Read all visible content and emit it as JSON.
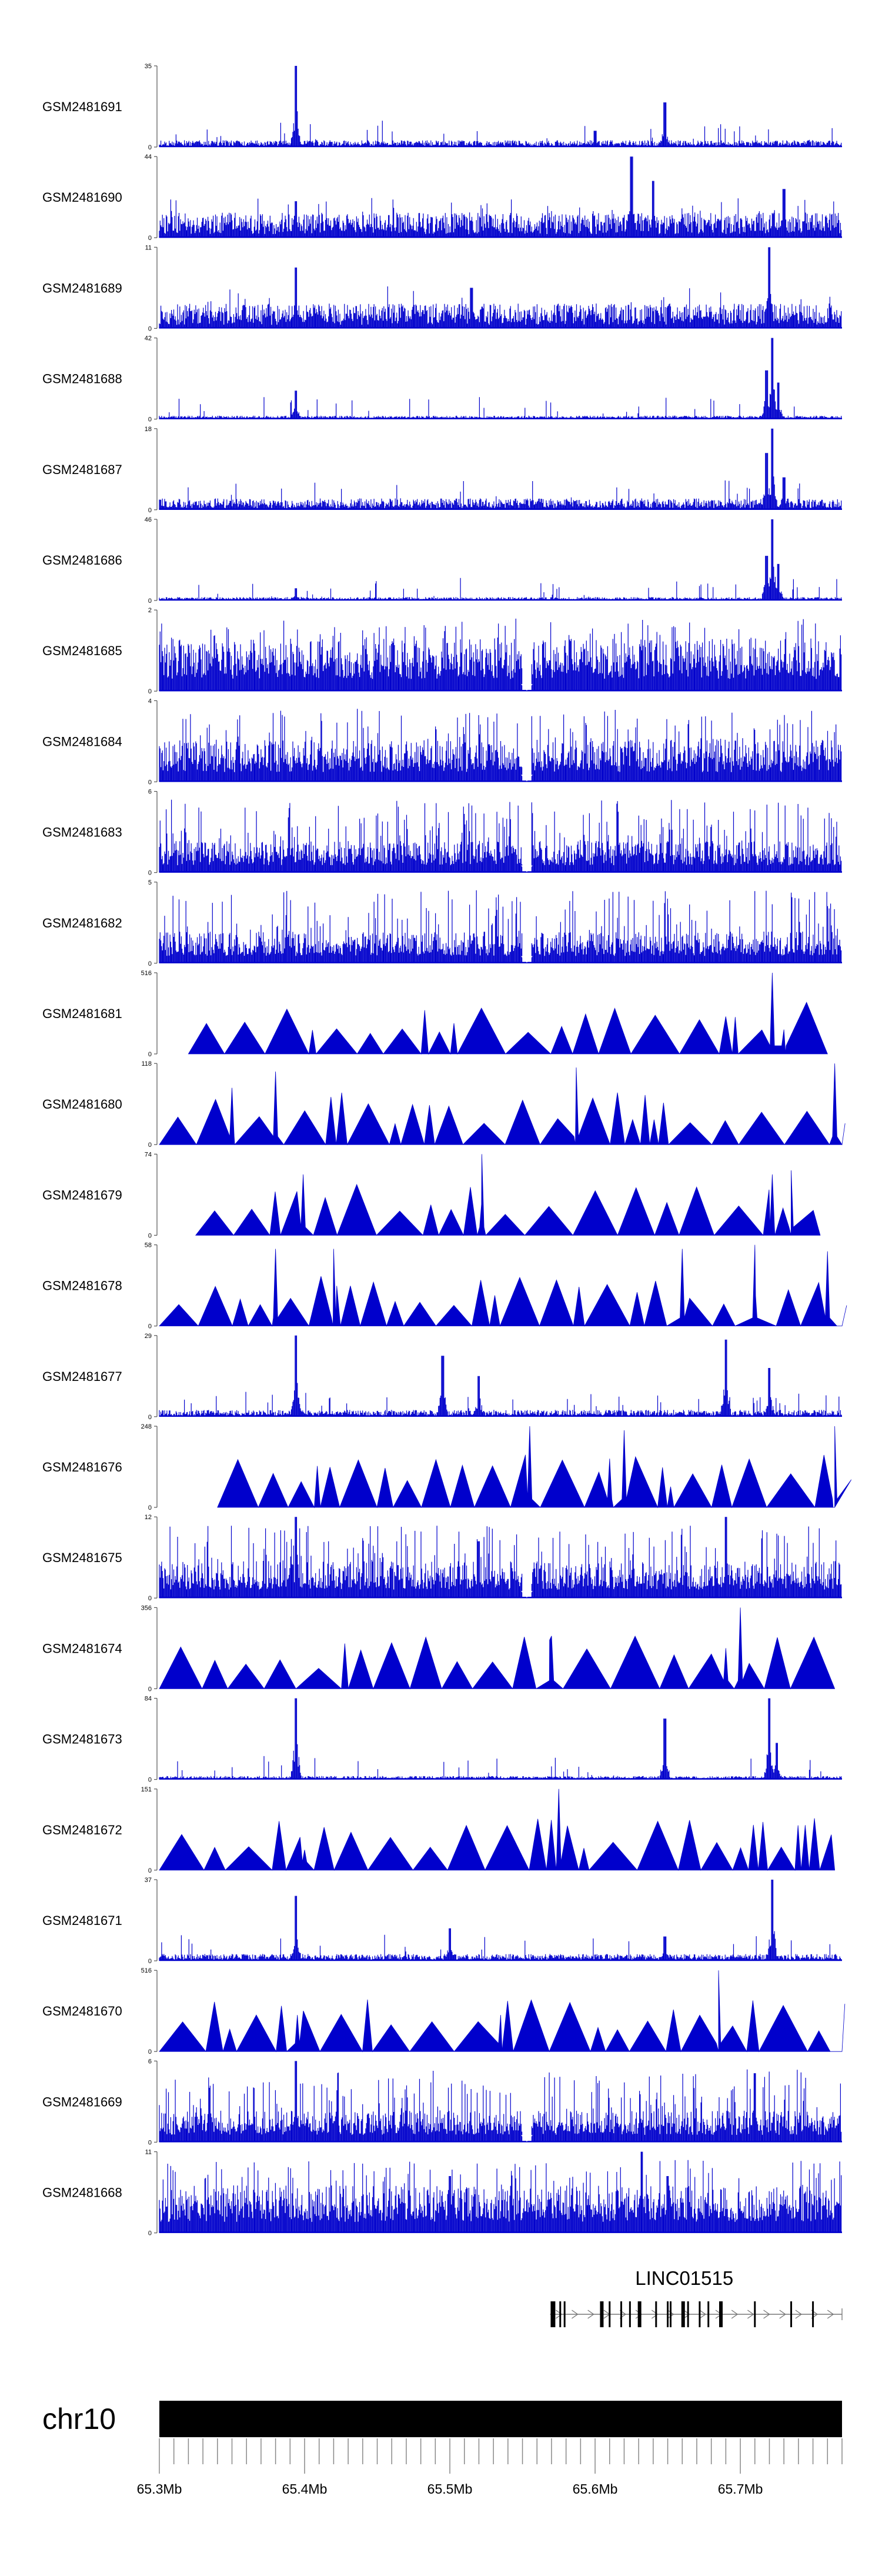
{
  "chart_data": {
    "type": "area",
    "chromosome": "chr10",
    "x_range_mb": [
      65.3,
      65.77
    ],
    "x_ticks": [
      "65.3Mb",
      "65.4Mb",
      "65.5Mb",
      "65.6Mb",
      "65.7Mb"
    ],
    "x_tick_values": [
      65.3,
      65.4,
      65.5,
      65.6,
      65.7
    ],
    "series_color": "#0000cc",
    "tracks": [
      {
        "name": "GSM2481691",
        "ymax": 35,
        "style": "dense",
        "seed": 11,
        "baseline": 0.06,
        "peaks": [
          [
            65.394,
            1.0
          ],
          [
            65.648,
            0.55
          ],
          [
            65.6,
            0.2
          ]
        ]
      },
      {
        "name": "GSM2481690",
        "ymax": 44,
        "style": "dense",
        "seed": 12,
        "baseline": 0.22,
        "peaks": [
          [
            65.625,
            1.0
          ],
          [
            65.64,
            0.7
          ],
          [
            65.73,
            0.6
          ],
          [
            65.394,
            0.45
          ]
        ]
      },
      {
        "name": "GSM2481689",
        "ymax": 11,
        "style": "dense",
        "seed": 13,
        "baseline": 0.22,
        "peaks": [
          [
            65.72,
            1.0
          ],
          [
            65.394,
            0.75
          ],
          [
            65.72,
            0.8
          ],
          [
            65.515,
            0.5
          ]
        ]
      },
      {
        "name": "GSM2481688",
        "ymax": 42,
        "style": "dense",
        "seed": 14,
        "baseline": 0.03,
        "peaks": [
          [
            65.722,
            1.0
          ],
          [
            65.718,
            0.6
          ],
          [
            65.726,
            0.45
          ],
          [
            65.394,
            0.35
          ]
        ]
      },
      {
        "name": "GSM2481687",
        "ymax": 18,
        "style": "dense",
        "seed": 15,
        "baseline": 0.1,
        "peaks": [
          [
            65.722,
            1.0
          ],
          [
            65.718,
            0.7
          ],
          [
            65.73,
            0.4
          ],
          [
            65.73,
            0.3
          ]
        ]
      },
      {
        "name": "GSM2481686",
        "ymax": 46,
        "style": "dense",
        "seed": 16,
        "baseline": 0.03,
        "peaks": [
          [
            65.722,
            1.0
          ],
          [
            65.718,
            0.55
          ],
          [
            65.726,
            0.45
          ],
          [
            65.394,
            0.15
          ]
        ]
      },
      {
        "name": "GSM2481685",
        "ymax": 2,
        "style": "binary",
        "seed": 17,
        "baseline": 0.5,
        "peaks": [],
        "gap": 65.553
      },
      {
        "name": "GSM2481684",
        "ymax": 4,
        "style": "binary",
        "seed": 18,
        "baseline": 0.4,
        "peaks": [],
        "gap": 65.553
      },
      {
        "name": "GSM2481683",
        "ymax": 6,
        "style": "binary",
        "seed": 19,
        "baseline": 0.3,
        "peaks": [],
        "gap": 65.553
      },
      {
        "name": "GSM2481682",
        "ymax": 5,
        "style": "binary",
        "seed": 20,
        "baseline": 0.3,
        "peaks": [],
        "gap": 65.553
      },
      {
        "name": "GSM2481681",
        "ymax": 516,
        "style": "tri",
        "seed": 21,
        "range": [
          65.32,
          65.76
        ],
        "spikes": [
          [
            65.722,
            1.0
          ],
          [
            65.73,
            0.3
          ]
        ]
      },
      {
        "name": "GSM2481680",
        "ymax": 118,
        "style": "tri",
        "seed": 22,
        "range": [
          65.3,
          65.77
        ],
        "spikes": [
          [
            65.765,
            1.0
          ],
          [
            65.587,
            0.95
          ],
          [
            65.38,
            0.9
          ],
          [
            65.35,
            0.7
          ]
        ]
      },
      {
        "name": "GSM2481679",
        "ymax": 74,
        "style": "tri",
        "seed": 23,
        "range": [
          65.325,
          65.755
        ],
        "spikes": [
          [
            65.522,
            1.0
          ],
          [
            65.722,
            0.75
          ],
          [
            65.735,
            0.8
          ],
          [
            65.399,
            0.75
          ]
        ]
      },
      {
        "name": "GSM2481678",
        "ymax": 58,
        "style": "tri",
        "seed": 24,
        "range": [
          65.3,
          65.77
        ],
        "spikes": [
          [
            65.71,
            1.0
          ],
          [
            65.38,
            0.95
          ],
          [
            65.42,
            0.95
          ],
          [
            65.66,
            0.95
          ],
          [
            65.76,
            0.92
          ]
        ]
      },
      {
        "name": "GSM2481677",
        "ymax": 29,
        "style": "dense",
        "seed": 25,
        "baseline": 0.06,
        "peaks": [
          [
            65.394,
            1.0
          ],
          [
            65.69,
            0.95
          ],
          [
            65.72,
            0.6
          ],
          [
            65.495,
            0.75
          ],
          [
            65.52,
            0.5
          ]
        ]
      },
      {
        "name": "GSM2481676",
        "ymax": 248,
        "style": "tri",
        "seed": 26,
        "range": [
          65.34,
          65.765
        ],
        "spikes": [
          [
            65.555,
            1.0
          ],
          [
            65.62,
            0.95
          ],
          [
            65.765,
            1.0
          ],
          [
            65.61,
            0.6
          ]
        ]
      },
      {
        "name": "GSM2481675",
        "ymax": 12,
        "style": "binary",
        "seed": 27,
        "baseline": 0.35,
        "peaks": [
          [
            65.394,
            1.0
          ],
          [
            65.69,
            1.0
          ],
          [
            65.52,
            0.7
          ]
        ],
        "gap": 65.553
      },
      {
        "name": "GSM2481674",
        "ymax": 356,
        "style": "tri",
        "seed": 28,
        "range": [
          65.3,
          65.765
        ],
        "spikes": [
          [
            65.7,
            1.0
          ],
          [
            65.57,
            0.65
          ],
          [
            65.69,
            0.5
          ]
        ]
      },
      {
        "name": "GSM2481673",
        "ymax": 84,
        "style": "dense",
        "seed": 29,
        "baseline": 0.03,
        "peaks": [
          [
            65.394,
            1.0
          ],
          [
            65.72,
            1.0
          ],
          [
            65.648,
            0.75
          ],
          [
            65.725,
            0.45
          ]
        ]
      },
      {
        "name": "GSM2481672",
        "ymax": 151,
        "style": "tri",
        "seed": 30,
        "range": [
          65.3,
          65.765
        ],
        "spikes": [
          [
            65.575,
            1.0
          ],
          [
            65.4,
            0.25
          ]
        ]
      },
      {
        "name": "GSM2481671",
        "ymax": 37,
        "style": "dense",
        "seed": 31,
        "baseline": 0.06,
        "peaks": [
          [
            65.722,
            1.0
          ],
          [
            65.394,
            0.8
          ],
          [
            65.648,
            0.3
          ],
          [
            65.5,
            0.4
          ]
        ]
      },
      {
        "name": "GSM2481670",
        "ymax": 516,
        "style": "tri",
        "seed": 32,
        "range": [
          65.3,
          65.77
        ],
        "spikes": [
          [
            65.685,
            1.0
          ],
          [
            65.395,
            0.45
          ],
          [
            65.535,
            0.45
          ]
        ]
      },
      {
        "name": "GSM2481669",
        "ymax": 6,
        "style": "binary",
        "seed": 33,
        "baseline": 0.3,
        "peaks": [
          [
            65.394,
            1.0
          ],
          [
            65.71,
            0.85
          ]
        ],
        "gap": 65.553
      },
      {
        "name": "GSM2481668",
        "ymax": 11,
        "style": "binary",
        "seed": 34,
        "baseline": 0.45,
        "peaks": [
          [
            65.632,
            1.0
          ],
          [
            65.5,
            0.7
          ],
          [
            65.65,
            0.7
          ]
        ]
      }
    ],
    "gene": {
      "name": "LINC01515",
      "start_mb": 65.569,
      "end_mb": 65.77,
      "strand": "+",
      "exons_mb": [
        65.57,
        65.572,
        65.576,
        65.579,
        65.604,
        65.61,
        65.618,
        65.624,
        65.63,
        65.642,
        65.65,
        65.652,
        65.66,
        65.664,
        65.672,
        65.678,
        65.686,
        65.71,
        65.735,
        65.75
      ]
    }
  }
}
